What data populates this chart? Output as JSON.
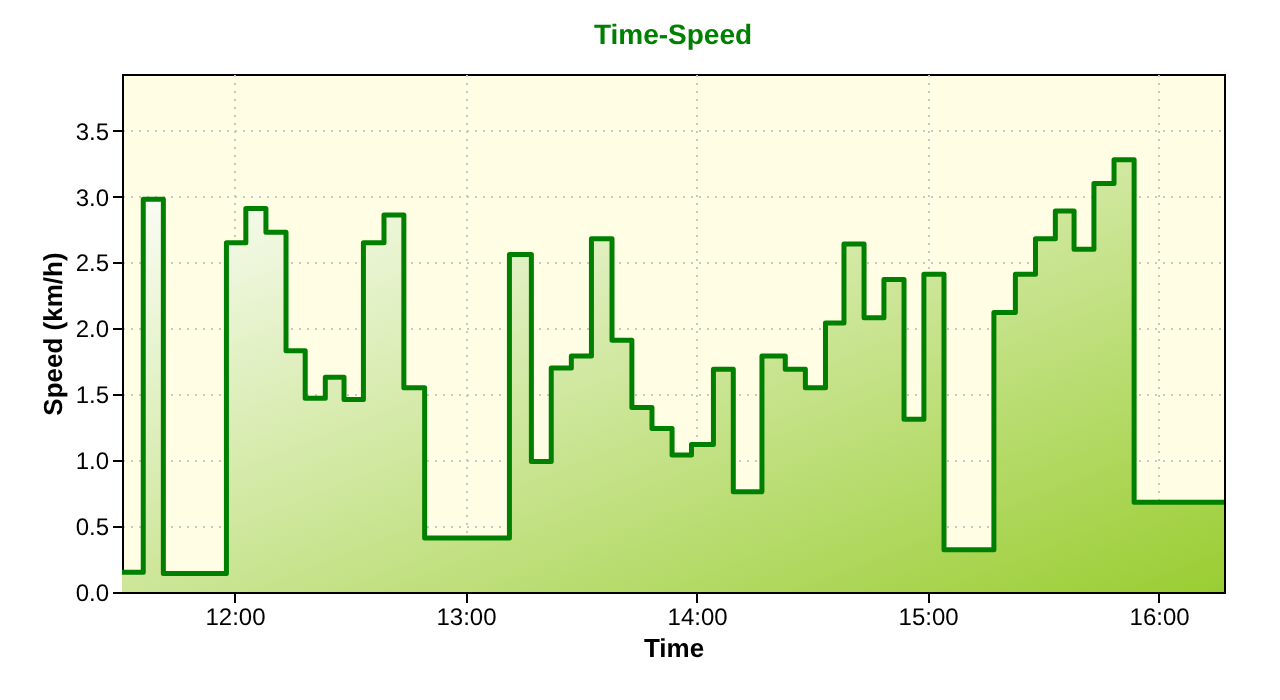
{
  "chart_data": {
    "type": "area",
    "title": "Time-Speed",
    "xlabel": "Time",
    "ylabel": "Speed (km/h)",
    "x": [
      11.513,
      11.605,
      11.605,
      11.692,
      11.692,
      11.965,
      11.965,
      12.049,
      12.049,
      12.136,
      12.136,
      12.223,
      12.223,
      12.306,
      12.306,
      12.393,
      12.393,
      12.474,
      12.474,
      12.558,
      12.558,
      12.647,
      12.647,
      12.733,
      12.733,
      12.823,
      12.823,
      13.19,
      13.19,
      13.285,
      13.285,
      13.371,
      13.371,
      13.458,
      13.458,
      13.545,
      13.545,
      13.634,
      13.634,
      13.72,
      13.72,
      13.807,
      13.807,
      13.894,
      13.894,
      13.978,
      13.978,
      14.073,
      14.073,
      14.159,
      14.159,
      14.283,
      14.283,
      14.384,
      14.384,
      14.471,
      14.471,
      14.558,
      14.558,
      14.638,
      14.638,
      14.725,
      14.725,
      14.811,
      14.811,
      14.898,
      14.898,
      14.984,
      14.984,
      15.071,
      15.071,
      15.287,
      15.287,
      15.38,
      15.38,
      15.467,
      15.467,
      15.553,
      15.553,
      15.634,
      15.634,
      15.72,
      15.72,
      15.807,
      15.807,
      15.894,
      15.894,
      16.283
    ],
    "series": [
      {
        "color": "#008000",
        "values": [
          0.15,
          0.15,
          2.98,
          2.98,
          0.14,
          0.14,
          2.65,
          2.65,
          2.91,
          2.91,
          2.73,
          2.73,
          1.83,
          1.83,
          1.47,
          1.47,
          1.63,
          1.63,
          1.46,
          1.46,
          2.65,
          2.65,
          2.86,
          2.86,
          1.55,
          1.55,
          0.41,
          0.41,
          2.56,
          2.56,
          0.99,
          0.99,
          1.7,
          1.7,
          1.79,
          1.79,
          2.68,
          2.68,
          1.91,
          1.91,
          1.4,
          1.4,
          1.24,
          1.24,
          1.04,
          1.04,
          1.12,
          1.12,
          1.69,
          1.69,
          0.76,
          0.76,
          1.79,
          1.79,
          1.69,
          1.69,
          1.55,
          1.55,
          2.04,
          2.04,
          2.64,
          2.64,
          2.08,
          2.08,
          2.37,
          2.37,
          1.31,
          1.31,
          2.41,
          2.41,
          0.32,
          0.32,
          2.12,
          2.12,
          2.41,
          2.41,
          2.68,
          2.68,
          2.89,
          2.89,
          2.6,
          2.6,
          3.1,
          3.1,
          3.28,
          3.28,
          0.68,
          0.68
        ]
      }
    ],
    "xlim": [
      11.513,
      16.283
    ],
    "xticks": [
      {
        "value": 12,
        "label": "12:00"
      },
      {
        "value": 13,
        "label": "13:00"
      },
      {
        "value": 14,
        "label": "14:00"
      },
      {
        "value": 15,
        "label": "15:00"
      },
      {
        "value": 16,
        "label": "16:00"
      }
    ],
    "ylim": [
      0,
      3.93
    ],
    "yticks": [
      {
        "value": 0,
        "label": "0.0"
      },
      0.5,
      {
        "value": 1,
        "label": "1.0"
      },
      1.5,
      {
        "value": 2,
        "label": "2.0"
      },
      2.5,
      {
        "value": 3,
        "label": "3.0"
      },
      3.5
    ],
    "grid": true,
    "marker": "none",
    "line_style": "solid"
  }
}
